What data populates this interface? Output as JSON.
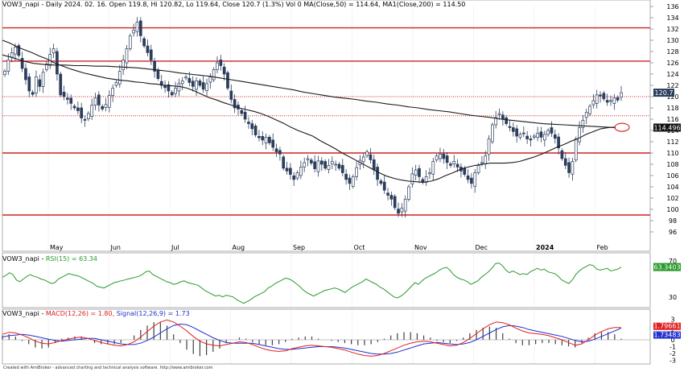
{
  "header": {
    "main_prefix": "VOW3_napi - Daily 2024. 02. 16. Open 119.8, Hi 120.82, Lo 119.64, Close 120.7 (1.3%) Vol 0",
    "ma50_label": "MA(Close,50) = 114.64,",
    "ma200_label": "MA1(Close,200) = 114.50",
    "rsi_prefix": "VOW3_napi - ",
    "rsi_label": "RSI(15) = 63.34",
    "macd_prefix": "VOW3_napi - ",
    "macd_label": "MACD(12,26) = 1.80,",
    "signal_label": "Signal(12,26,9) = 1.73"
  },
  "footer": {
    "credit": "Created with AmiBroker - advanced charting and technical analysis software. http://www.amibroker.com"
  },
  "colors": {
    "candle": "#2c3e5c",
    "ma50": "#1a1a1a",
    "ma200": "#1a1a1a",
    "hline": "#d42020",
    "rsi": "#2a9a2a",
    "macd": "#e02020",
    "signal": "#2030d0",
    "hist": "#404040",
    "grid": "#c8c8c8",
    "ellipse": "#e03030"
  },
  "chart_data": [
    {
      "type": "candlestick",
      "title": "VOW3_napi - Daily 2024. 02. 16.",
      "ylim": [
        96,
        136
      ],
      "yticks": [
        96,
        98,
        100,
        102,
        104,
        106,
        108,
        110,
        112,
        114,
        116,
        118,
        120,
        122,
        124,
        126,
        128,
        130,
        132,
        134,
        136
      ],
      "x_labels": [
        "May",
        "Jun",
        "Jul",
        "Aug",
        "Sep",
        "Oct",
        "Nov",
        "Dec",
        "2024",
        "Feb"
      ],
      "last_close_label": "120.7",
      "ma_label_value": "114.496",
      "horizontal_lines": [
        {
          "value": 132.2,
          "style": "solid"
        },
        {
          "value": 126.3,
          "style": "solid"
        },
        {
          "value": 120.0,
          "style": "dotted"
        },
        {
          "value": 116.6,
          "style": "dotted"
        },
        {
          "value": 110.0,
          "style": "solid"
        },
        {
          "value": 99.0,
          "style": "solid"
        }
      ],
      "close_series": [
        124.5,
        126.5,
        127.8,
        128.8,
        127.3,
        125.0,
        123.0,
        121.0,
        120.4,
        123.5,
        121.8,
        124.3,
        125.8,
        127.5,
        128.5,
        124.0,
        120.3,
        120.0,
        119.5,
        118.8,
        118.0,
        117.5,
        116.2,
        115.8,
        117.0,
        118.5,
        119.8,
        118.5,
        117.8,
        118.6,
        120.2,
        121.5,
        122.5,
        124.5,
        126.5,
        128.5,
        130.8,
        131.8,
        133.2,
        130.8,
        129.0,
        127.8,
        126.5,
        124.5,
        123.2,
        122.0,
        121.6,
        121.0,
        120.3,
        121.5,
        122.3,
        122.8,
        123.5,
        122.5,
        121.8,
        122.8,
        122.0,
        121.3,
        122.3,
        123.5,
        124.8,
        126.0,
        125.5,
        124.0,
        121.5,
        119.5,
        118.0,
        117.8,
        117.0,
        116.0,
        115.2,
        114.3,
        113.2,
        112.7,
        112.3,
        112.8,
        111.8,
        111.0,
        110.2,
        109.8,
        107.3,
        106.8,
        106.2,
        105.3,
        106.5,
        107.5,
        108.3,
        109.0,
        108.2,
        107.2,
        108.6,
        108.0,
        107.3,
        107.8,
        108.5,
        108.0,
        107.3,
        106.5,
        105.3,
        104.6,
        105.8,
        107.4,
        108.7,
        109.3,
        110.2,
        108.8,
        107.0,
        105.3,
        104.6,
        103.4,
        102.5,
        101.8,
        100.3,
        99.3,
        100.2,
        101.8,
        104.0,
        106.3,
        107.0,
        105.8,
        104.8,
        105.8,
        106.5,
        108.5,
        109.5,
        109.8,
        109.0,
        108.3,
        107.8,
        108.5,
        107.5,
        106.8,
        106.2,
        105.3,
        104.6,
        106.5,
        107.8,
        108.3,
        109.5,
        112.5,
        115.0,
        116.3,
        117.0,
        116.0,
        115.2,
        114.5,
        113.8,
        113.0,
        113.3,
        113.5,
        112.5,
        112.3,
        113.0,
        113.5,
        112.8,
        113.3,
        114.0,
        113.5,
        112.6,
        110.9,
        109.0,
        107.8,
        106.5,
        108.5,
        112.5,
        114.5,
        115.8,
        117.2,
        118.3,
        119.3,
        120.3,
        120.1,
        119.6,
        119.0,
        119.3,
        119.8,
        119.4,
        120.7
      ],
      "ma50": [
        130.0,
        129.5,
        128.8,
        128.3,
        127.8,
        127.2,
        126.7,
        126.0,
        125.5,
        125.0,
        124.6,
        124.2,
        123.9,
        123.6,
        123.3,
        123.1,
        122.9,
        122.8,
        122.6,
        122.5,
        122.3,
        122.2,
        122.0,
        121.9,
        121.8,
        121.5,
        121.0,
        120.4,
        119.8,
        119.4,
        118.9,
        118.5,
        118.0,
        117.7,
        117.4,
        117.0,
        116.5,
        115.9,
        115.3,
        114.6,
        114.0,
        113.5,
        113.0,
        112.2,
        111.5,
        110.8,
        110.0,
        109.3,
        108.6,
        107.9,
        107.2,
        106.5,
        105.9,
        105.5,
        105.2,
        105.0,
        104.9,
        104.8,
        105.0,
        105.4,
        106.0,
        106.5,
        107.1,
        107.5,
        107.8,
        108.0,
        108.2,
        108.2,
        108.2,
        108.3,
        108.5,
        108.9,
        109.3,
        109.8,
        110.4,
        111.0,
        111.5,
        112.1,
        112.6,
        113.3,
        113.8,
        114.3,
        114.5,
        114.6
      ],
      "ma200": [
        127.4,
        126.9,
        126.3,
        125.9,
        125.7,
        125.6,
        125.6,
        125.5,
        125.5,
        125.4,
        125.4,
        125.3,
        125.2,
        125.1,
        124.9,
        124.7,
        124.5,
        124.2,
        124.0,
        123.8,
        123.6,
        123.3,
        123.0,
        122.7,
        122.4,
        122.1,
        121.8,
        121.5,
        121.2,
        120.8,
        120.5,
        120.2,
        119.9,
        119.7,
        119.5,
        119.2,
        119.0,
        118.7,
        118.5,
        118.2,
        118.0,
        117.7,
        117.5,
        117.3,
        117.0,
        116.7,
        116.5,
        116.3,
        116.0,
        115.8,
        115.6,
        115.4,
        115.2,
        115.1,
        115.0,
        114.9,
        114.8,
        114.7,
        114.6,
        114.5
      ]
    },
    {
      "type": "line",
      "title": "RSI(15)",
      "ylim": [
        20,
        72
      ],
      "yticks": [
        30,
        70
      ],
      "last_value_label": "63.3403",
      "values": [
        52,
        54,
        57,
        55,
        49,
        47,
        50,
        53,
        55,
        53,
        52,
        50,
        49,
        47,
        45,
        46,
        50,
        52,
        54,
        56,
        55,
        54,
        53,
        51,
        49,
        47,
        45,
        42,
        41,
        40,
        42,
        44,
        46,
        47,
        48,
        49,
        50,
        51,
        52,
        53,
        55,
        58,
        59,
        55,
        53,
        51,
        49,
        47,
        46,
        44,
        45,
        47,
        48,
        46,
        45,
        44,
        43,
        40,
        37,
        35,
        33,
        31,
        32,
        30,
        32,
        31,
        30,
        27,
        25,
        23,
        25,
        27,
        30,
        32,
        34,
        36,
        40,
        42,
        45,
        47,
        49,
        51,
        50,
        48,
        45,
        42,
        38,
        35,
        33,
        31,
        33,
        35,
        37,
        38,
        39,
        40,
        39,
        37,
        35,
        38,
        41,
        43,
        45,
        47,
        50,
        48,
        46,
        44,
        41,
        39,
        36,
        33,
        30,
        29,
        31,
        34,
        38,
        42,
        46,
        44,
        48,
        51,
        53,
        55,
        57,
        60,
        62,
        63,
        60,
        55,
        52,
        50,
        49,
        47,
        44,
        46,
        48,
        52,
        55,
        58,
        62,
        67,
        68,
        65,
        60,
        57,
        59,
        57,
        55,
        56,
        55,
        58,
        60,
        62,
        60,
        61,
        58,
        57,
        56,
        53,
        49,
        47,
        45,
        49,
        55,
        59,
        62,
        64,
        66,
        65,
        61,
        60,
        61,
        62,
        59,
        60,
        61,
        63.34
      ]
    },
    {
      "type": "line",
      "title": "MACD(12,26)",
      "ylim": [
        -3.3,
        3.3
      ],
      "yticks": [
        -3,
        -2,
        -1,
        0,
        1,
        2,
        3
      ],
      "value_labels": [
        "1.79661",
        "1.73483"
      ],
      "series": [
        {
          "name": "MACD(12,26)",
          "values": [
            0.8,
            1.1,
            1.0,
            0.7,
            0.3,
            -0.2,
            -0.5,
            -0.6,
            -0.4,
            -0.1,
            0.1,
            0.3,
            0.4,
            0.2,
            -0.1,
            -0.4,
            -0.6,
            -0.8,
            -0.9,
            -0.7,
            -0.3,
            0.4,
            1.2,
            2.0,
            2.6,
            2.9,
            2.6,
            2.0,
            1.3,
            0.5,
            -0.2,
            -0.6,
            -0.8,
            -0.9,
            -0.7,
            -0.5,
            -0.3,
            -0.4,
            -0.7,
            -1.1,
            -1.4,
            -1.6,
            -1.7,
            -1.6,
            -1.3,
            -1.1,
            -0.9,
            -0.8,
            -0.9,
            -1.0,
            -1.1,
            -1.3,
            -1.5,
            -1.8,
            -2.1,
            -2.3,
            -2.4,
            -2.3,
            -2.0,
            -1.6,
            -1.2,
            -0.8,
            -0.5,
            -0.3,
            -0.2,
            -0.3,
            -0.5,
            -0.7,
            -0.9,
            -0.8,
            -0.4,
            0.2,
            0.9,
            1.6,
            2.2,
            2.6,
            2.5,
            2.2,
            1.7,
            1.3,
            1.0,
            0.9,
            0.8,
            0.6,
            0.3,
            0.0,
            -0.4,
            -0.8,
            -0.6,
            0.0,
            0.7,
            1.2,
            1.6,
            1.8,
            1.8
          ]
        },
        {
          "name": "Signal(12,26,9)",
          "values": [
            0.4,
            0.6,
            0.7,
            0.8,
            0.7,
            0.5,
            0.3,
            0.1,
            -0.1,
            -0.2,
            -0.1,
            0.0,
            0.1,
            0.2,
            0.2,
            0.0,
            -0.2,
            -0.4,
            -0.6,
            -0.7,
            -0.7,
            -0.5,
            -0.1,
            0.4,
            1.0,
            1.6,
            2.1,
            2.3,
            2.2,
            1.8,
            1.3,
            0.8,
            0.3,
            -0.1,
            -0.4,
            -0.5,
            -0.5,
            -0.5,
            -0.5,
            -0.7,
            -0.9,
            -1.1,
            -1.3,
            -1.4,
            -1.4,
            -1.3,
            -1.2,
            -1.1,
            -1.0,
            -1.0,
            -1.0,
            -1.1,
            -1.2,
            -1.4,
            -1.6,
            -1.8,
            -2.0,
            -2.1,
            -2.1,
            -2.0,
            -1.8,
            -1.5,
            -1.2,
            -0.9,
            -0.6,
            -0.5,
            -0.4,
            -0.5,
            -0.6,
            -0.7,
            -0.6,
            -0.4,
            0.0,
            0.5,
            1.0,
            1.5,
            1.9,
            2.1,
            2.0,
            1.8,
            1.5,
            1.3,
            1.1,
            0.9,
            0.7,
            0.5,
            0.2,
            -0.1,
            -0.3,
            -0.2,
            0.1,
            0.5,
            0.9,
            1.3,
            1.7
          ]
        }
      ]
    }
  ]
}
